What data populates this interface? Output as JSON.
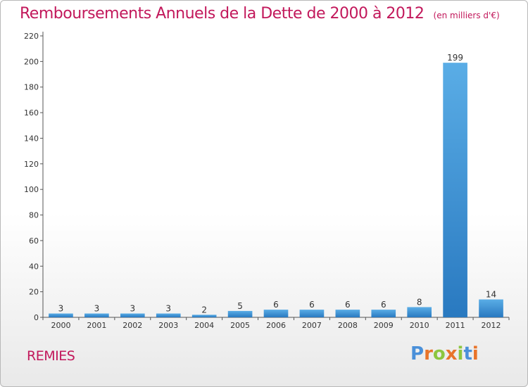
{
  "title": "Remboursements Annuels de la Dette de 2000 à 2012",
  "subtitle": "(en milliers d'€)",
  "commune": "REMIES",
  "logo": {
    "text": "Proxiti",
    "letter_colors": [
      "#4a90d9",
      "#e8742a",
      "#8cc63f",
      "#e8742a",
      "#8cc63f",
      "#4a90d9",
      "#e8742a"
    ]
  },
  "colors": {
    "title": "#c2185b",
    "bar_light": "#5aade6",
    "bar_dark": "#2979c0"
  },
  "chart_data": {
    "type": "bar",
    "categories": [
      "2000",
      "2001",
      "2002",
      "2003",
      "2004",
      "2005",
      "2006",
      "2007",
      "2008",
      "2009",
      "2010",
      "2011",
      "2012"
    ],
    "values": [
      3,
      3,
      3,
      3,
      2,
      5,
      6,
      6,
      6,
      6,
      8,
      199,
      14
    ],
    "ylim": [
      0,
      220
    ],
    "yticks": [
      0,
      20,
      40,
      60,
      80,
      100,
      120,
      140,
      160,
      180,
      200,
      220
    ],
    "xlabel": "",
    "ylabel": "",
    "grid": false,
    "legend": "none"
  }
}
